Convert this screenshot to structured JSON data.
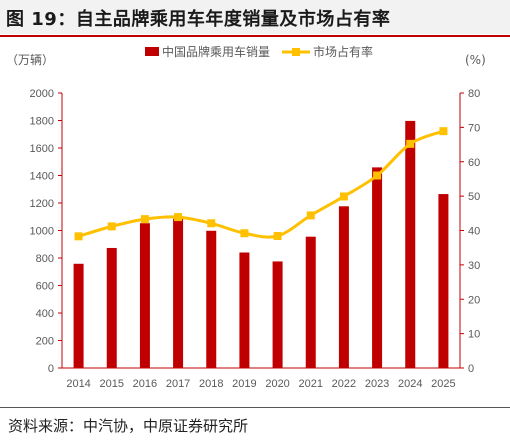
{
  "figure": {
    "title": "图 19：自主品牌乘用车年度销量及市场占有率",
    "source": "资料来源：中汽协，中原证券研究所"
  },
  "colors": {
    "bar": "#c00000",
    "line": "#ffc000",
    "axis": "#c00000",
    "text": "#595959"
  },
  "chart_data": {
    "type": "bar",
    "categories": [
      "2014",
      "2015",
      "2016",
      "2017",
      "2018",
      "2019",
      "2020",
      "2021",
      "2022",
      "2023",
      "2024",
      "2025"
    ],
    "series": [
      {
        "name": "中国品牌乘用车销量",
        "type": "bar",
        "axis": "left",
        "values": [
          758,
          873,
          1053,
          1085,
          998,
          840,
          775,
          955,
          1176,
          1459,
          1797,
          1265
        ]
      },
      {
        "name": "市场占有率",
        "type": "line",
        "axis": "right",
        "values": [
          38.3,
          41.2,
          43.3,
          43.9,
          42.1,
          39.2,
          38.4,
          44.4,
          49.9,
          56.0,
          65.2,
          68.9
        ]
      }
    ],
    "left_axis": {
      "unit_label": "（万辆）",
      "ylim": [
        0,
        2000
      ],
      "ticks": [
        "0",
        "200",
        "400",
        "600",
        "800",
        "1000",
        "1200",
        "1400",
        "1600",
        "1800",
        "2000"
      ]
    },
    "right_axis": {
      "unit_label": "(%)",
      "ylim": [
        0,
        80
      ],
      "ticks": [
        "0",
        "10",
        "20",
        "30",
        "40",
        "50",
        "60",
        "70",
        "80"
      ]
    },
    "legend_position": "top-center",
    "grid": false
  }
}
